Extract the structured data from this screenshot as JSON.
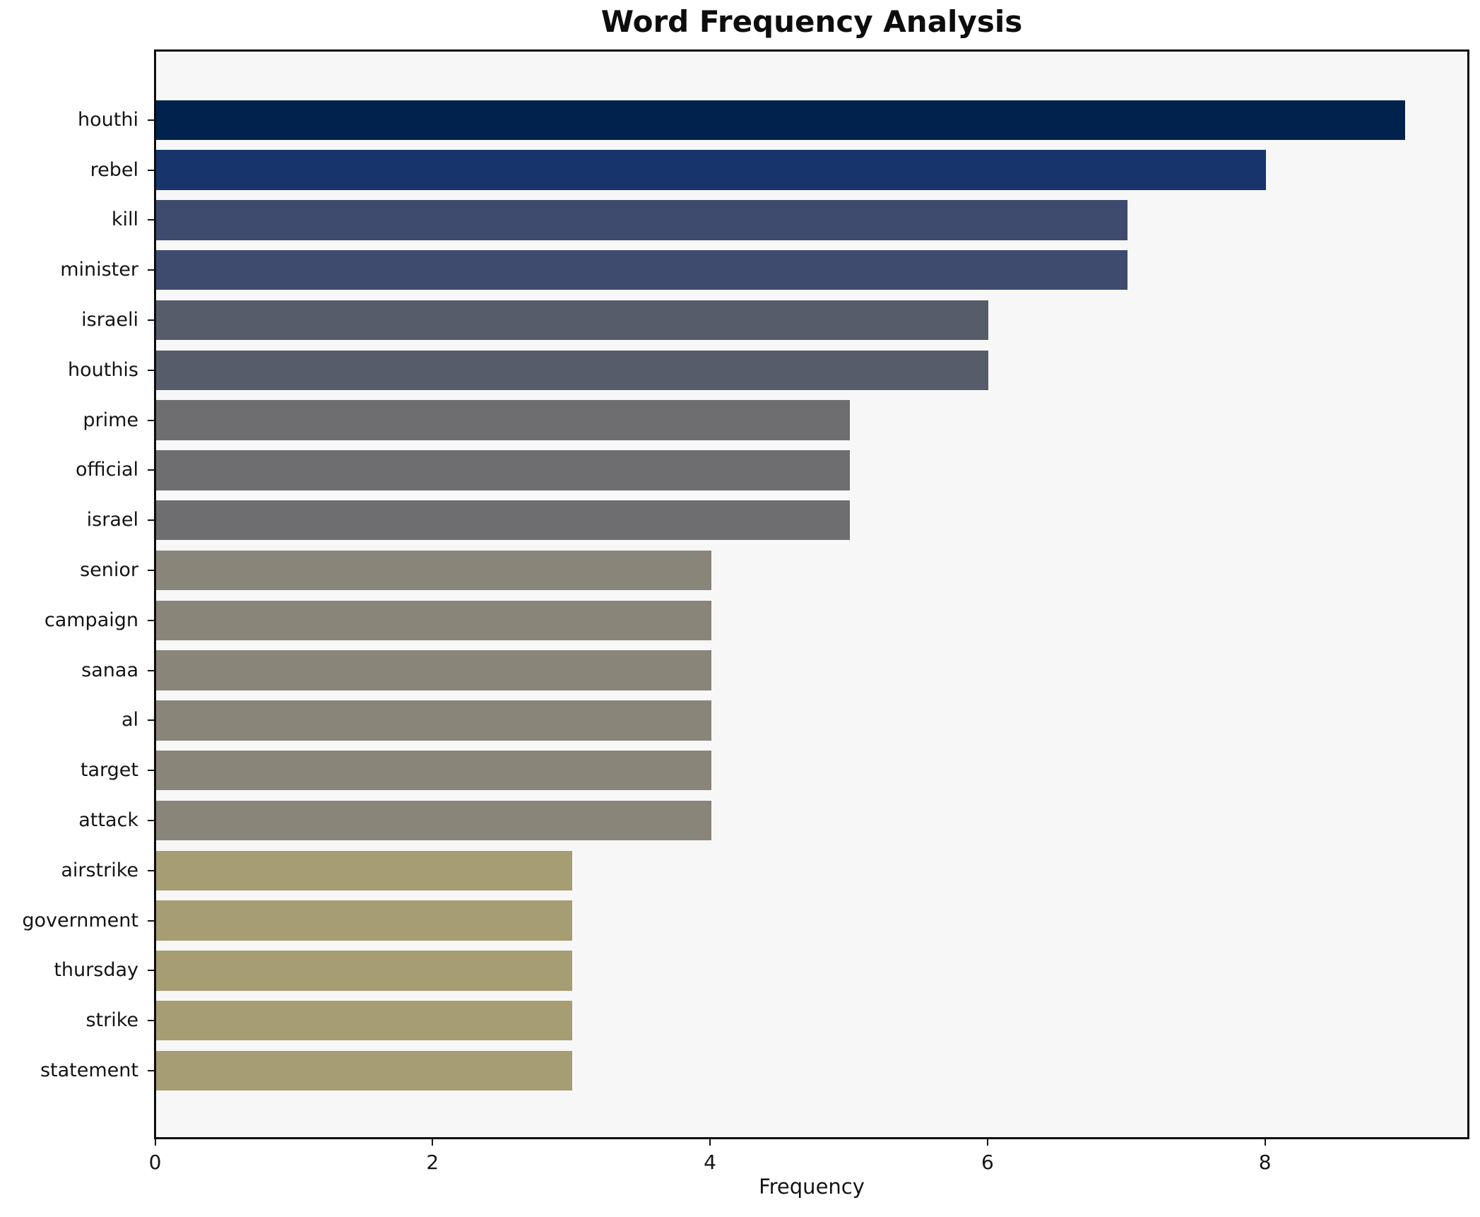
{
  "chart_data": {
    "type": "bar",
    "orientation": "horizontal",
    "title": "Word Frequency Analysis",
    "xlabel": "Frequency",
    "ylabel": "",
    "categories": [
      "houthi",
      "rebel",
      "kill",
      "minister",
      "israeli",
      "houthis",
      "prime",
      "official",
      "israel",
      "senior",
      "campaign",
      "sanaa",
      "al",
      "target",
      "attack",
      "airstrike",
      "government",
      "thursday",
      "strike",
      "statement"
    ],
    "values": [
      9,
      8,
      7,
      7,
      6,
      6,
      5,
      5,
      5,
      4,
      4,
      4,
      4,
      4,
      4,
      3,
      3,
      3,
      3,
      3
    ],
    "bar_colors": [
      "#01224d",
      "#17356a",
      "#3e4a6e",
      "#3e4a6e",
      "#575c6b",
      "#575c6b",
      "#6e6e70",
      "#6e6e70",
      "#6e6e70",
      "#898679",
      "#898679",
      "#898679",
      "#898679",
      "#898679",
      "#898679",
      "#a69d72",
      "#a69d72",
      "#a69d72",
      "#a69d72",
      "#a69d72"
    ],
    "xlim": [
      0,
      9.45
    ],
    "xticks": [
      0,
      2,
      4,
      6,
      8
    ],
    "grid": false,
    "legend": null,
    "colors": {
      "figure_background": "#ffffff",
      "plot_background": "#f7f7f8",
      "spine": "#0c0c0c",
      "text": "#141414"
    }
  }
}
